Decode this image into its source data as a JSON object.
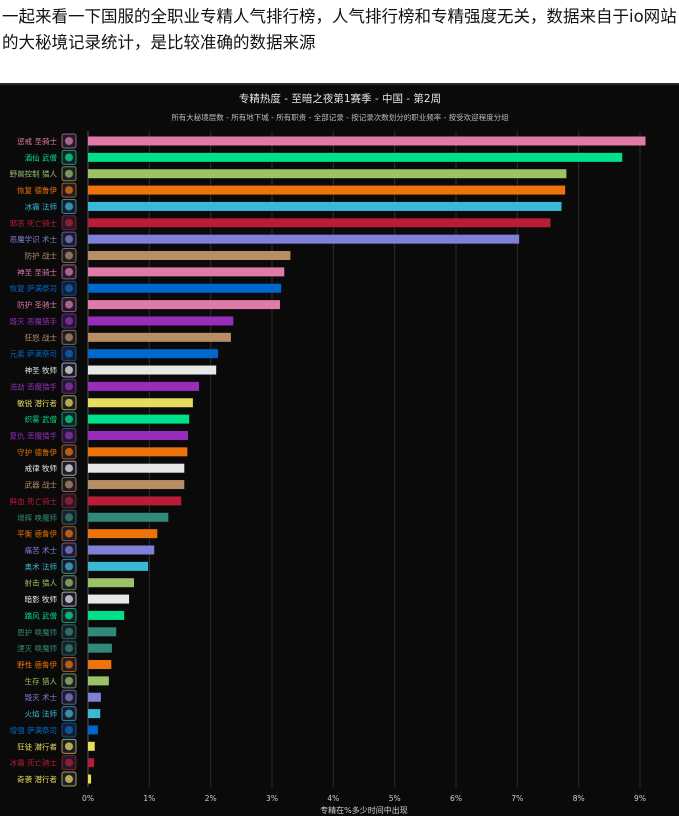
{
  "intro_text": "一起来看一下国服的全职业专精人气排行榜，人气排行榜和专精强度无关，数据来自于io网站的大秘境记录统计，是比较准确的数据来源",
  "chart_data": {
    "type": "bar",
    "orientation": "horizontal",
    "title": "专精热度 - 至暗之夜第1赛季 - 中国 - 第2周",
    "subtitle": "所有大秘境层数 - 所有地下城 - 所有职责 - 全部记录 - 按记录次数划分的职业频率 - 按受欢迎程度分组",
    "xlabel": "专精在%多少时间中出现",
    "xlim": [
      0,
      9
    ],
    "xticks": [
      "0%",
      "1%",
      "2%",
      "3%",
      "4%",
      "5%",
      "6%",
      "7%",
      "8%",
      "9%"
    ],
    "grid": true,
    "unit": "%",
    "categories": [
      {
        "label": "惩戒 圣骑士",
        "value": 9.09,
        "color": "#e07aa8"
      },
      {
        "label": "酒仙 武僧",
        "value": 8.71,
        "color": "#00e08a"
      },
      {
        "label": "野兽控制 猎人",
        "value": 7.8,
        "color": "#9cc268"
      },
      {
        "label": "恢复 德鲁伊",
        "value": 7.78,
        "color": "#ee730a"
      },
      {
        "label": "冰霜 法师",
        "value": 7.72,
        "color": "#3ab8d8"
      },
      {
        "label": "邪恶 死亡骑士",
        "value": 7.54,
        "color": "#b81c36"
      },
      {
        "label": "恶魔学识 术士",
        "value": 7.03,
        "color": "#7f80d8"
      },
      {
        "label": "防护 战士",
        "value": 3.3,
        "color": "#b88f65"
      },
      {
        "label": "神圣 圣骑士",
        "value": 3.2,
        "color": "#e07aa8"
      },
      {
        "label": "恢复 萨满祭司",
        "value": 3.15,
        "color": "#0068cc"
      },
      {
        "label": "防护 圣骑士",
        "value": 3.13,
        "color": "#e07aa8"
      },
      {
        "label": "毁灭 恶魔猎手",
        "value": 2.37,
        "color": "#982dbb"
      },
      {
        "label": "狂怒 战士",
        "value": 2.33,
        "color": "#b88f65"
      },
      {
        "label": "元素 萨满祭司",
        "value": 2.12,
        "color": "#0068cc"
      },
      {
        "label": "神圣 牧师",
        "value": 2.09,
        "color": "#e8e8e8"
      },
      {
        "label": "浩劫 恶魔猎手",
        "value": 1.81,
        "color": "#982dbb"
      },
      {
        "label": "敏锐 潜行者",
        "value": 1.71,
        "color": "#e6dc5e"
      },
      {
        "label": "织雾 武僧",
        "value": 1.65,
        "color": "#00e08a"
      },
      {
        "label": "复仇 恶魔猎手",
        "value": 1.63,
        "color": "#982dbb"
      },
      {
        "label": "守护 德鲁伊",
        "value": 1.62,
        "color": "#ee730a"
      },
      {
        "label": "戒律 牧师",
        "value": 1.57,
        "color": "#e8e8e8"
      },
      {
        "label": "武器 战士",
        "value": 1.57,
        "color": "#b88f65"
      },
      {
        "label": "鲜血 死亡骑士",
        "value": 1.52,
        "color": "#b81c36"
      },
      {
        "label": "增辉 唤魔师",
        "value": 1.31,
        "color": "#308a77"
      },
      {
        "label": "平衡 德鲁伊",
        "value": 1.13,
        "color": "#ee730a"
      },
      {
        "label": "痛苦 术士",
        "value": 1.08,
        "color": "#7f80d8"
      },
      {
        "label": "奥术 法师",
        "value": 0.98,
        "color": "#3ab8d8"
      },
      {
        "label": "射击 猎人",
        "value": 0.75,
        "color": "#9cc268"
      },
      {
        "label": "暗影 牧师",
        "value": 0.67,
        "color": "#e8e8e8"
      },
      {
        "label": "踏风 武僧",
        "value": 0.59,
        "color": "#00e08a"
      },
      {
        "label": "恩护 唤魔师",
        "value": 0.46,
        "color": "#308a77"
      },
      {
        "label": "湮灭 唤魔师",
        "value": 0.39,
        "color": "#308a77"
      },
      {
        "label": "野性 德鲁伊",
        "value": 0.38,
        "color": "#ee730a"
      },
      {
        "label": "生存 猎人",
        "value": 0.34,
        "color": "#9cc268"
      },
      {
        "label": "毁灭 术士",
        "value": 0.21,
        "color": "#7f80d8"
      },
      {
        "label": "火焰 法师",
        "value": 0.2,
        "color": "#3ab8d8"
      },
      {
        "label": "增强 萨满祭司",
        "value": 0.16,
        "color": "#0068cc"
      },
      {
        "label": "狂徒 潜行者",
        "value": 0.11,
        "color": "#e6dc5e"
      },
      {
        "label": "冰霜 死亡骑士",
        "value": 0.1,
        "color": "#b81c36"
      },
      {
        "label": "奇袭 潜行者",
        "value": 0.05,
        "color": "#e6dc5e"
      }
    ]
  }
}
